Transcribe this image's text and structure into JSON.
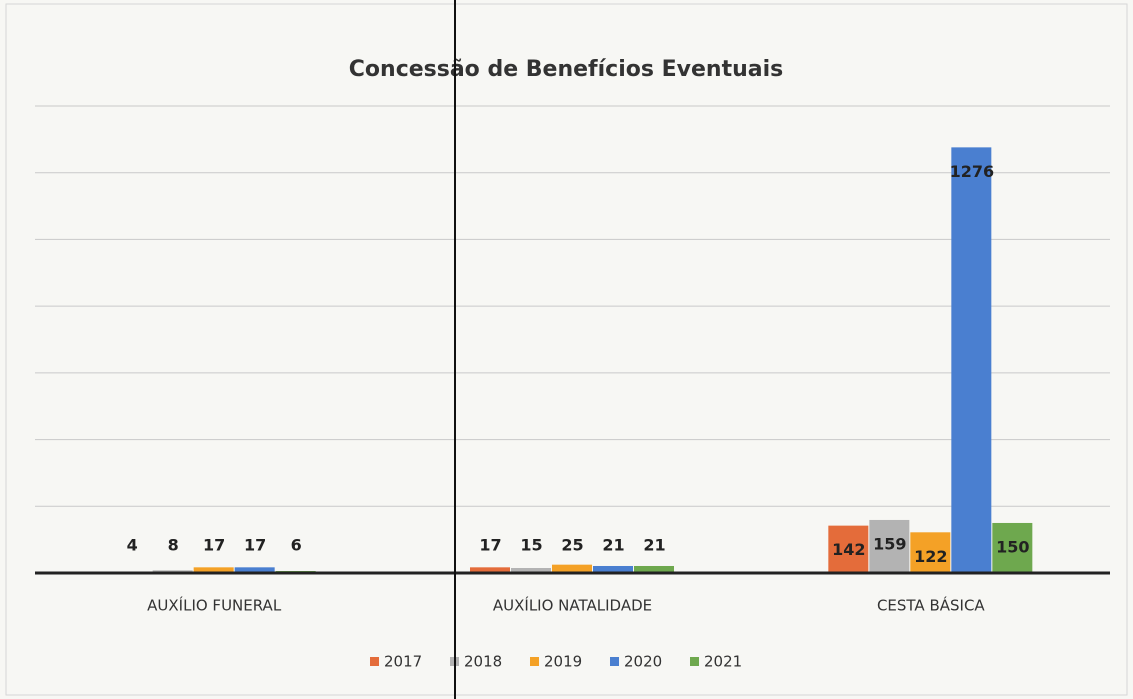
{
  "chart_data": {
    "type": "bar",
    "title": "Concessão de Benefícios Eventuais",
    "categories": [
      "AUXÍLIO FUNERAL",
      "AUXÍLIO NATALIDADE",
      "CESTA BÁSICA"
    ],
    "series": [
      {
        "name": "2017",
        "color": "#e46c3a",
        "values": [
          4,
          17,
          142
        ]
      },
      {
        "name": "2018",
        "color": "#b3b3b3",
        "values": [
          8,
          15,
          159
        ]
      },
      {
        "name": "2019",
        "color": "#f4a126",
        "values": [
          17,
          25,
          122
        ]
      },
      {
        "name": "2020",
        "color": "#4a7fd0",
        "values": [
          17,
          21,
          1276
        ]
      },
      {
        "name": "2021",
        "color": "#6ea84e",
        "values": [
          6,
          21,
          150
        ]
      }
    ],
    "ylim": [
      0,
      1400
    ],
    "yticks": [
      0,
      200,
      400,
      600,
      800,
      1000,
      1200,
      1400
    ],
    "grid": true,
    "ytick_labels": false,
    "legend": "bottom"
  }
}
